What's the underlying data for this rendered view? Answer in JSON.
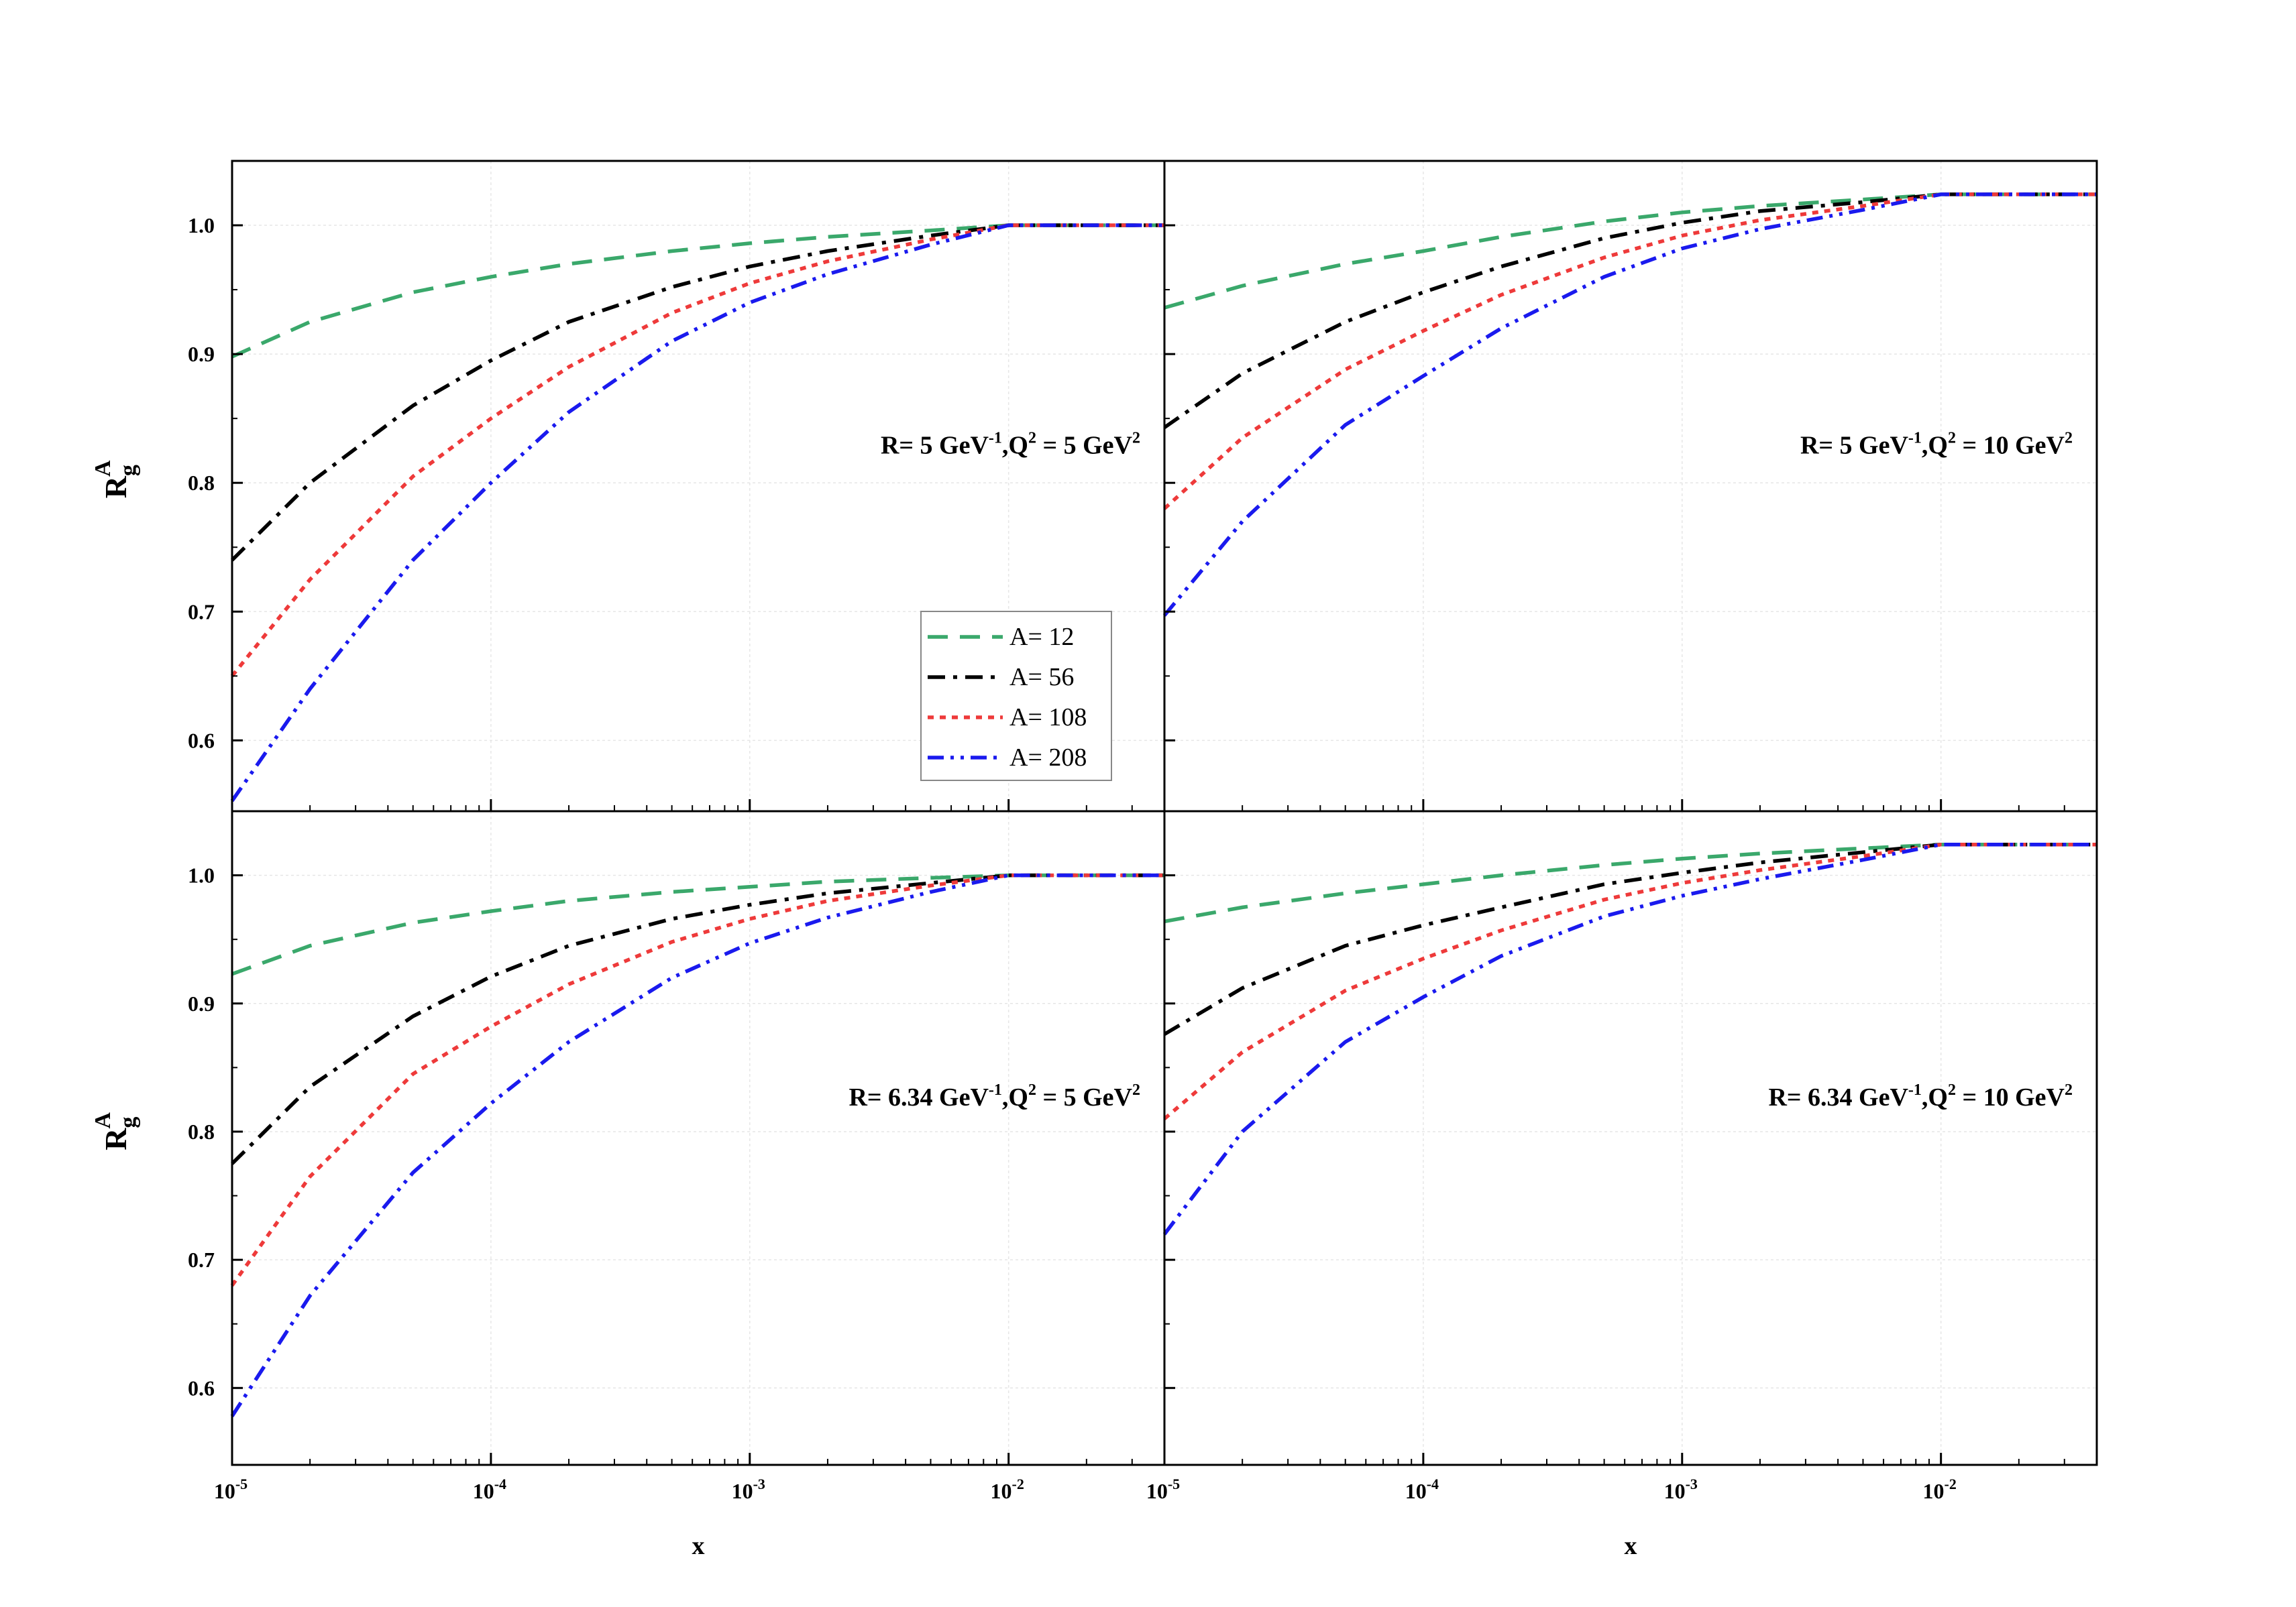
{
  "chart_data": {
    "type": "line",
    "x_scale": "log",
    "xlabel": "x",
    "ylabel": {
      "base": "R",
      "sub": "g",
      "sup": "A"
    },
    "xlim": [
      1e-05,
      0.04
    ],
    "x_ticks": [
      {
        "value": 1e-05,
        "base": "10",
        "exp": "-5"
      },
      {
        "value": 0.0001,
        "base": "10",
        "exp": "-4"
      },
      {
        "value": 0.001,
        "base": "10",
        "exp": "-3"
      },
      {
        "value": 0.01,
        "base": "10",
        "exp": "-2"
      }
    ],
    "y_tick_labels": [
      "0.6",
      "0.7",
      "0.8",
      "0.9",
      "1.0"
    ],
    "y_ticks": [
      0.6,
      0.7,
      0.8,
      0.9,
      1.0
    ],
    "grid": true,
    "legend": {
      "placement": "lower-right of top-left panel",
      "entries": [
        {
          "label": "A= 12",
          "color": "#3aa86b",
          "dash": "long-dash"
        },
        {
          "label": "A= 56",
          "color": "#000000",
          "dash": "dash-dot"
        },
        {
          "label": "A= 108",
          "color": "#ee3a3a",
          "dash": "short-dash"
        },
        {
          "label": "A= 208",
          "color": "#1a1aee",
          "dash": "dash-dot-dot"
        }
      ]
    },
    "panels": [
      {
        "position": "top-left",
        "annotation": {
          "p1": "R= 5 GeV",
          "s1": "-1",
          "p2": ",Q",
          "s2": "2",
          "p3": " = 5 GeV",
          "s3": "2"
        },
        "ylim": [
          0.545,
          1.05
        ],
        "x": [
          1e-05,
          2e-05,
          5e-05,
          0.0001,
          0.0002,
          0.0005,
          0.001,
          0.002,
          0.005,
          0.01,
          0.02,
          0.04
        ],
        "series": [
          {
            "name": "A= 12",
            "values": [
              0.898,
              0.925,
              0.948,
              0.96,
              0.97,
              0.98,
              0.986,
              0.991,
              0.996,
              1.0,
              1.0,
              1.0
            ]
          },
          {
            "name": "A= 56",
            "values": [
              0.74,
              0.8,
              0.86,
              0.895,
              0.925,
              0.952,
              0.968,
              0.98,
              0.992,
              1.0,
              1.0,
              1.0
            ]
          },
          {
            "name": "A= 108",
            "values": [
              0.65,
              0.725,
              0.805,
              0.85,
              0.89,
              0.932,
              0.955,
              0.972,
              0.989,
              1.0,
              1.0,
              1.0
            ]
          },
          {
            "name": "A= 208",
            "values": [
              0.553,
              0.64,
              0.74,
              0.8,
              0.855,
              0.91,
              0.94,
              0.962,
              0.985,
              1.0,
              1.0,
              1.0
            ]
          }
        ]
      },
      {
        "position": "top-right",
        "annotation": {
          "p1": "R= 5 GeV",
          "s1": "-1",
          "p2": ",Q",
          "s2": "2",
          "p3": " = 10 GeV",
          "s3": "2"
        },
        "ylim": [
          0.545,
          1.05
        ],
        "x": [
          1e-05,
          2e-05,
          5e-05,
          0.0001,
          0.0002,
          0.0005,
          0.001,
          0.002,
          0.005,
          0.01,
          0.02,
          0.04
        ],
        "series": [
          {
            "name": "A= 12",
            "values": [
              0.936,
              0.953,
              0.97,
              0.98,
              0.991,
              1.003,
              1.01,
              1.015,
              1.02,
              1.024,
              1.024,
              1.024
            ]
          },
          {
            "name": "A= 56",
            "values": [
              0.843,
              0.885,
              0.925,
              0.948,
              0.968,
              0.99,
              1.002,
              1.011,
              1.018,
              1.024,
              1.024,
              1.024
            ]
          },
          {
            "name": "A= 108",
            "values": [
              0.78,
              0.835,
              0.888,
              0.918,
              0.946,
              0.975,
              0.992,
              1.004,
              1.015,
              1.024,
              1.024,
              1.024
            ]
          },
          {
            "name": "A= 208",
            "values": [
              0.697,
              0.77,
              0.845,
              0.883,
              0.92,
              0.96,
              0.982,
              0.997,
              1.012,
              1.024,
              1.024,
              1.024
            ]
          }
        ]
      },
      {
        "position": "bottom-left",
        "annotation": {
          "p1": "R= 6.34 GeV",
          "s1": "-1",
          "p2": ",Q",
          "s2": "2",
          "p3": " = 5 GeV",
          "s3": "2"
        },
        "ylim": [
          0.54,
          1.05
        ],
        "x": [
          1e-05,
          2e-05,
          5e-05,
          0.0001,
          0.0002,
          0.0005,
          0.001,
          0.002,
          0.005,
          0.01,
          0.02,
          0.04
        ],
        "series": [
          {
            "name": "A= 12",
            "values": [
              0.923,
              0.945,
              0.963,
              0.972,
              0.98,
              0.987,
              0.991,
              0.995,
              0.998,
              1.0,
              1.0,
              1.0
            ]
          },
          {
            "name": "A= 56",
            "values": [
              0.775,
              0.835,
              0.89,
              0.921,
              0.945,
              0.966,
              0.977,
              0.986,
              0.994,
              1.0,
              1.0,
              1.0
            ]
          },
          {
            "name": "A= 108",
            "values": [
              0.68,
              0.765,
              0.845,
              0.882,
              0.915,
              0.948,
              0.966,
              0.98,
              0.992,
              1.0,
              1.0,
              1.0
            ]
          },
          {
            "name": "A= 208",
            "values": [
              0.578,
              0.672,
              0.768,
              0.822,
              0.87,
              0.92,
              0.947,
              0.967,
              0.987,
              1.0,
              1.0,
              1.0
            ]
          }
        ]
      },
      {
        "position": "bottom-right",
        "annotation": {
          "p1": "R= 6.34  GeV",
          "s1": "-1",
          "p2": ",Q",
          "s2": "2",
          "p3": " = 10 GeV",
          "s3": "2"
        },
        "ylim": [
          0.54,
          1.05
        ],
        "x": [
          1e-05,
          2e-05,
          5e-05,
          0.0001,
          0.0002,
          0.0005,
          0.001,
          0.002,
          0.005,
          0.01,
          0.02,
          0.04
        ],
        "series": [
          {
            "name": "A= 12",
            "values": [
              0.964,
              0.975,
              0.986,
              0.993,
              1.0,
              1.008,
              1.013,
              1.017,
              1.021,
              1.024,
              1.024,
              1.024
            ]
          },
          {
            "name": "A= 56",
            "values": [
              0.876,
              0.912,
              0.945,
              0.961,
              0.975,
              0.993,
              1.002,
              1.01,
              1.018,
              1.024,
              1.024,
              1.024
            ]
          },
          {
            "name": "A= 108",
            "values": [
              0.81,
              0.862,
              0.91,
              0.935,
              0.957,
              0.981,
              0.994,
              1.004,
              1.015,
              1.024,
              1.024,
              1.024
            ]
          },
          {
            "name": "A= 208",
            "values": [
              0.72,
              0.8,
              0.87,
              0.905,
              0.937,
              0.968,
              0.984,
              0.997,
              1.012,
              1.024,
              1.024,
              1.024
            ]
          }
        ]
      }
    ]
  }
}
